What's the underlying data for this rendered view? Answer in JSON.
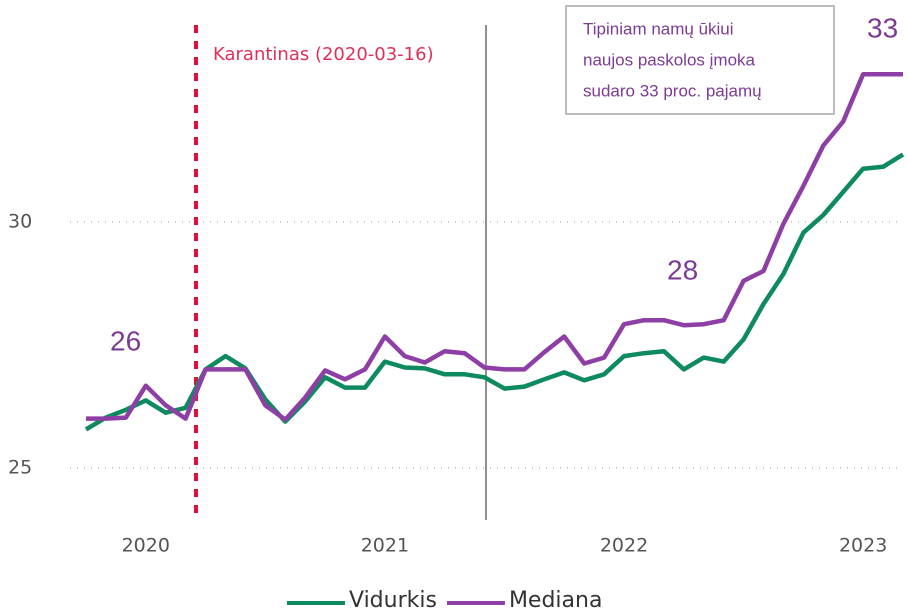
{
  "chart_data": {
    "type": "line",
    "categories": [
      null,
      null,
      null,
      "2020",
      null,
      null,
      null,
      null,
      null,
      null,
      null,
      null,
      null,
      null,
      null,
      "2021",
      null,
      null,
      null,
      null,
      null,
      null,
      null,
      null,
      null,
      null,
      null,
      "2022",
      null,
      null,
      null,
      null,
      null,
      null,
      null,
      null,
      null,
      null,
      null,
      "2023",
      null,
      null
    ],
    "series": [
      {
        "name": "Vidurkis",
        "color": "#0e8a5f",
        "values": [
          25.78,
          26.02,
          26.18,
          26.37,
          26.12,
          26.22,
          27.0,
          27.27,
          27.02,
          26.39,
          25.94,
          26.35,
          26.84,
          26.63,
          26.63,
          27.16,
          27.04,
          27.02,
          26.9,
          26.9,
          26.84,
          26.61,
          26.65,
          26.8,
          26.94,
          26.78,
          26.9,
          27.27,
          27.33,
          27.37,
          27.0,
          27.24,
          27.16,
          27.61,
          28.33,
          28.94,
          29.78,
          30.14,
          30.61,
          31.08,
          31.12,
          31.37
        ]
      },
      {
        "name": "Mediana",
        "color": "#8e3fa6",
        "values": [
          26.0,
          26.0,
          26.02,
          26.67,
          26.27,
          26.0,
          27.0,
          27.0,
          27.0,
          26.27,
          25.98,
          26.43,
          26.98,
          26.8,
          27.0,
          27.67,
          27.27,
          27.14,
          27.37,
          27.33,
          27.04,
          27.0,
          27.0,
          27.35,
          27.67,
          27.12,
          27.24,
          27.92,
          28.0,
          28.0,
          27.9,
          27.92,
          28.0,
          28.8,
          29.0,
          29.96,
          30.73,
          31.55,
          32.04,
          33.0,
          33.0,
          33.0
        ]
      }
    ],
    "ylim": [
      24,
      34.5
    ],
    "yticks": [
      25,
      30
    ],
    "grid": true,
    "event_label": "Karantinas (2020-03-16)",
    "annotations": [
      "26",
      "28",
      "33"
    ],
    "note": [
      "Tipiniam namų ūkiui",
      "naujos paskolos įmoka",
      "sudaro 33 proc. pajamų"
    ]
  }
}
